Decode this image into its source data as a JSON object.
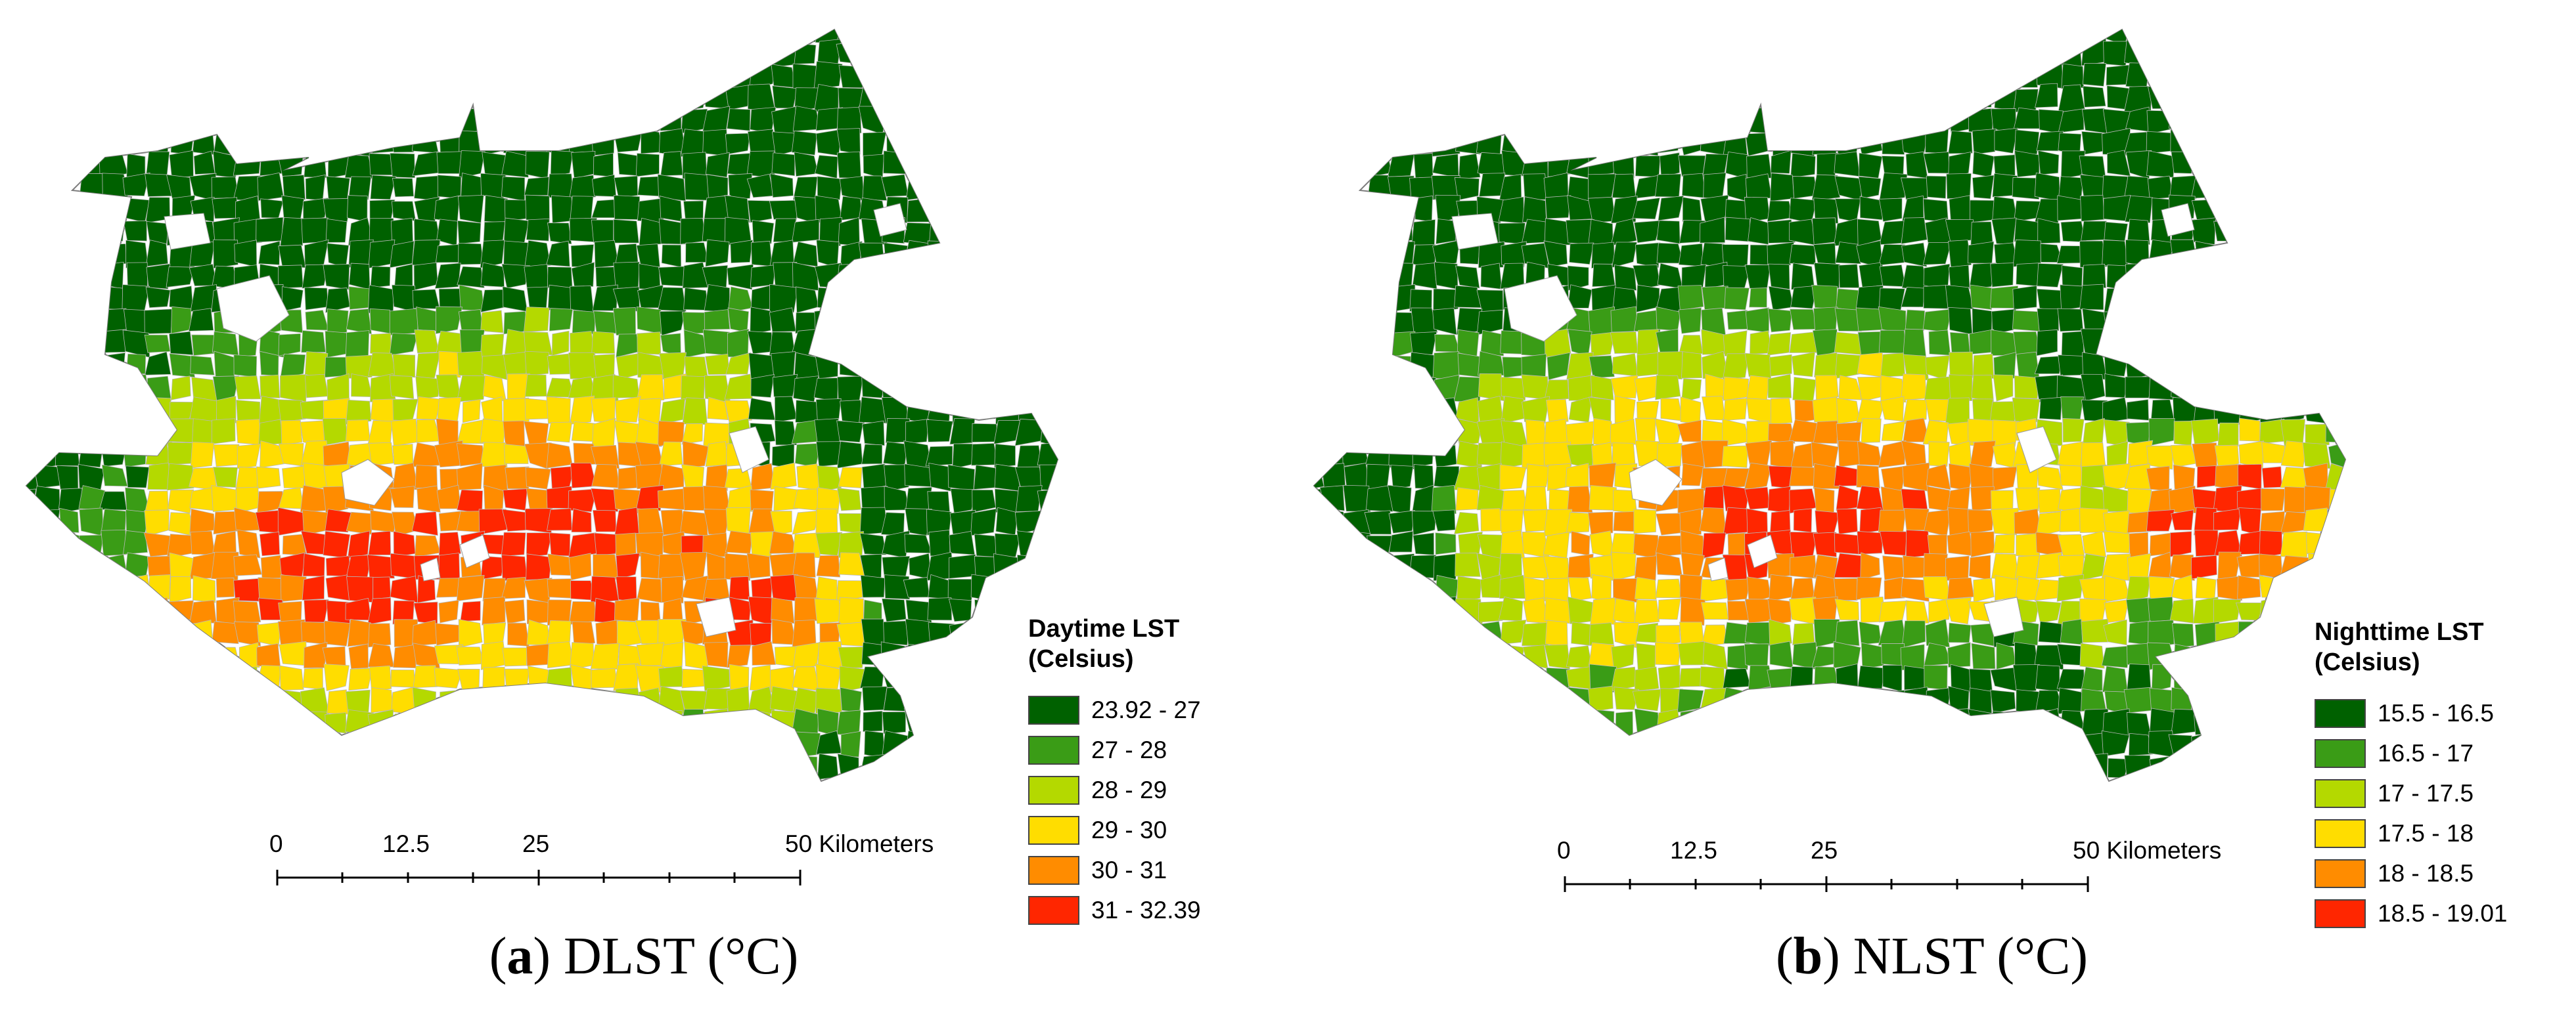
{
  "panels": [
    {
      "id": "a",
      "caption_letter": "a",
      "caption_text": "DLST (°C)",
      "legend_title_line1": "Daytime LST",
      "legend_title_line2": "(Celsius)",
      "classes": [
        {
          "label": "23.92 - 27",
          "color": "#006100"
        },
        {
          "label": "27 - 28",
          "color": "#3a9c16"
        },
        {
          "label": "28 - 29",
          "color": "#b4d900"
        },
        {
          "label": "29 - 30",
          "color": "#ffdd00"
        },
        {
          "label": "30 - 31",
          "color": "#ff8c00"
        },
        {
          "label": "31 - 32.39",
          "color": "#ff2600"
        }
      ]
    },
    {
      "id": "b",
      "caption_letter": "b",
      "caption_text": "NLST (°C)",
      "legend_title_line1": "Nighttime LST",
      "legend_title_line2": "(Celsius)",
      "classes": [
        {
          "label": "15.5 - 16.5",
          "color": "#006100"
        },
        {
          "label": "16.5 - 17",
          "color": "#3a9c16"
        },
        {
          "label": "17 - 17.5",
          "color": "#b4d900"
        },
        {
          "label": "17.5 - 18",
          "color": "#ffdd00"
        },
        {
          "label": "18 - 18.5",
          "color": "#ff8c00"
        },
        {
          "label": "18.5 - 19.01",
          "color": "#ff2600"
        }
      ]
    }
  ],
  "scale": {
    "tick0": "0",
    "tick1": "12.5",
    "tick2": "25",
    "tick3": "50 Kilometers"
  }
}
